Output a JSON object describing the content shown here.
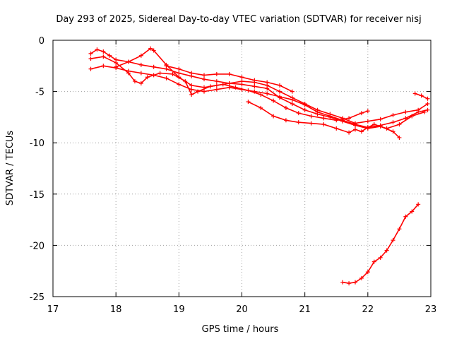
{
  "chart_data": {
    "type": "scatter",
    "title": "Day 293 of 2025, Sidereal Day-to-day VTEC variation (SDTVAR) for receiver nisj",
    "xlabel": "GPS time / hours",
    "ylabel": "SDTVAR / TECUs",
    "xlim": [
      17,
      23
    ],
    "ylim": [
      -25,
      0
    ],
    "xticks": [
      17,
      18,
      19,
      20,
      21,
      22,
      23
    ],
    "yticks": [
      0,
      -5,
      -10,
      -15,
      -20,
      -25
    ],
    "xtick_labels": [
      "17",
      "18",
      "19",
      "20",
      "21",
      "22",
      "23"
    ],
    "ytick_labels": [
      "0",
      "-5",
      "-10",
      "-15",
      "-20",
      "-25"
    ],
    "grid": true,
    "marker": "+",
    "color": "#ff0000",
    "series": [
      {
        "name": "track-1",
        "points": [
          [
            17.6,
            -1.3
          ],
          [
            17.7,
            -0.9
          ],
          [
            17.8,
            -1.1
          ],
          [
            17.9,
            -1.5
          ],
          [
            18.0,
            -1.9
          ],
          [
            18.2,
            -2.1
          ],
          [
            18.4,
            -2.4
          ],
          [
            18.6,
            -2.6
          ],
          [
            18.8,
            -2.8
          ],
          [
            19.0,
            -3.2
          ],
          [
            19.2,
            -3.5
          ],
          [
            19.4,
            -3.8
          ],
          [
            19.6,
            -4.0
          ],
          [
            19.8,
            -4.2
          ],
          [
            20.0,
            -4.3
          ],
          [
            20.2,
            -4.5
          ],
          [
            20.4,
            -4.7
          ],
          [
            20.6,
            -5.6
          ],
          [
            20.8,
            -6.2
          ],
          [
            21.0,
            -6.8
          ],
          [
            21.2,
            -7.2
          ],
          [
            21.4,
            -7.5
          ],
          [
            21.6,
            -7.9
          ],
          [
            21.8,
            -8.3
          ],
          [
            22.0,
            -8.6
          ],
          [
            22.2,
            -8.4
          ],
          [
            22.4,
            -8.9
          ],
          [
            22.5,
            -9.5
          ]
        ]
      },
      {
        "name": "track-2",
        "points": [
          [
            17.6,
            -2.8
          ],
          [
            17.8,
            -2.5
          ],
          [
            18.0,
            -2.7
          ],
          [
            18.2,
            -3.0
          ],
          [
            18.4,
            -3.2
          ],
          [
            18.6,
            -3.4
          ],
          [
            18.8,
            -3.7
          ],
          [
            19.0,
            -4.3
          ],
          [
            19.2,
            -4.8
          ],
          [
            19.4,
            -5.0
          ],
          [
            19.6,
            -4.8
          ],
          [
            19.8,
            -4.6
          ],
          [
            20.0,
            -4.8
          ],
          [
            20.2,
            -5.0
          ],
          [
            20.4,
            -5.2
          ],
          [
            20.6,
            -5.5
          ],
          [
            20.8,
            -5.8
          ],
          [
            21.0,
            -6.3
          ],
          [
            21.2,
            -7.0
          ],
          [
            21.4,
            -7.4
          ],
          [
            21.6,
            -7.8
          ],
          [
            21.8,
            -8.2
          ],
          [
            22.0,
            -8.5
          ],
          [
            22.2,
            -8.3
          ],
          [
            22.4,
            -8.0
          ],
          [
            22.6,
            -7.6
          ],
          [
            22.8,
            -7.0
          ],
          [
            22.95,
            -6.8
          ]
        ]
      },
      {
        "name": "track-3",
        "points": [
          [
            17.6,
            -1.8
          ],
          [
            17.8,
            -1.6
          ],
          [
            18.0,
            -2.2
          ],
          [
            18.2,
            -3.2
          ],
          [
            18.3,
            -4.0
          ],
          [
            18.4,
            -4.2
          ],
          [
            18.5,
            -3.6
          ],
          [
            18.7,
            -3.2
          ],
          [
            18.9,
            -3.3
          ],
          [
            19.1,
            -4.0
          ],
          [
            19.2,
            -5.3
          ],
          [
            19.3,
            -5.0
          ],
          [
            19.5,
            -4.5
          ],
          [
            19.7,
            -4.3
          ],
          [
            19.9,
            -4.6
          ],
          [
            20.1,
            -4.9
          ],
          [
            20.3,
            -5.3
          ],
          [
            20.5,
            -5.9
          ],
          [
            20.7,
            -6.6
          ],
          [
            20.9,
            -7.1
          ],
          [
            21.1,
            -7.4
          ],
          [
            21.3,
            -7.6
          ],
          [
            21.5,
            -7.8
          ],
          [
            21.7,
            -7.6
          ],
          [
            21.9,
            -7.1
          ],
          [
            22.0,
            -6.9
          ]
        ]
      },
      {
        "name": "track-4",
        "points": [
          [
            18.0,
            -2.6
          ],
          [
            18.2,
            -2.1
          ],
          [
            18.4,
            -1.5
          ],
          [
            18.55,
            -0.8
          ],
          [
            18.6,
            -1.0
          ],
          [
            18.8,
            -2.4
          ],
          [
            19.0,
            -3.6
          ],
          [
            19.2,
            -4.4
          ],
          [
            19.4,
            -4.6
          ],
          [
            19.6,
            -4.4
          ],
          [
            19.8,
            -4.2
          ],
          [
            20.0,
            -4.0
          ],
          [
            20.2,
            -4.1
          ],
          [
            20.4,
            -4.4
          ],
          [
            20.6,
            -5.0
          ],
          [
            20.8,
            -5.6
          ],
          [
            21.0,
            -6.2
          ],
          [
            21.2,
            -6.8
          ],
          [
            21.4,
            -7.2
          ],
          [
            21.6,
            -7.6
          ],
          [
            21.8,
            -8.1
          ],
          [
            22.0,
            -7.9
          ],
          [
            22.2,
            -7.7
          ],
          [
            22.4,
            -7.3
          ],
          [
            22.6,
            -7.0
          ],
          [
            22.8,
            -6.8
          ],
          [
            22.95,
            -6.2
          ]
        ]
      },
      {
        "name": "track-5",
        "points": [
          [
            18.8,
            -2.5
          ],
          [
            19.0,
            -2.8
          ],
          [
            19.2,
            -3.2
          ],
          [
            19.4,
            -3.4
          ],
          [
            19.6,
            -3.3
          ],
          [
            19.8,
            -3.3
          ],
          [
            20.0,
            -3.6
          ],
          [
            20.2,
            -3.9
          ],
          [
            20.4,
            -4.1
          ],
          [
            20.6,
            -4.4
          ],
          [
            20.8,
            -5.0
          ]
        ]
      },
      {
        "name": "track-6",
        "points": [
          [
            20.1,
            -6.0
          ],
          [
            20.3,
            -6.6
          ],
          [
            20.5,
            -7.4
          ],
          [
            20.7,
            -7.8
          ],
          [
            20.9,
            -8.0
          ],
          [
            21.1,
            -8.1
          ],
          [
            21.3,
            -8.2
          ],
          [
            21.5,
            -8.6
          ],
          [
            21.7,
            -9.0
          ],
          [
            21.8,
            -8.7
          ],
          [
            21.9,
            -8.9
          ],
          [
            22.0,
            -8.5
          ],
          [
            22.1,
            -8.2
          ],
          [
            22.3,
            -8.6
          ],
          [
            22.5,
            -8.2
          ],
          [
            22.7,
            -7.4
          ],
          [
            22.9,
            -7.0
          ]
        ]
      },
      {
        "name": "track-7",
        "points": [
          [
            22.75,
            -5.2
          ],
          [
            22.85,
            -5.4
          ],
          [
            22.95,
            -5.7
          ]
        ]
      },
      {
        "name": "track-8",
        "points": [
          [
            21.6,
            -23.6
          ],
          [
            21.7,
            -23.7
          ],
          [
            21.8,
            -23.6
          ],
          [
            21.9,
            -23.2
          ],
          [
            22.0,
            -22.6
          ],
          [
            22.1,
            -21.6
          ],
          [
            22.2,
            -21.2
          ],
          [
            22.3,
            -20.5
          ],
          [
            22.4,
            -19.5
          ],
          [
            22.5,
            -18.4
          ],
          [
            22.6,
            -17.2
          ],
          [
            22.7,
            -16.7
          ],
          [
            22.8,
            -16.0
          ]
        ]
      }
    ]
  }
}
